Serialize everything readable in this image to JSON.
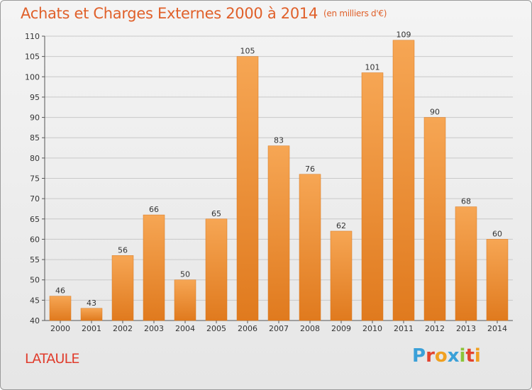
{
  "header": {
    "title": "Achats et Charges Externes 2000 à 2014",
    "unit": "(en milliers d'€)"
  },
  "commune": "LATAULE",
  "brand": {
    "letters": [
      "P",
      "r",
      "o",
      "x",
      "i",
      "t",
      "i"
    ]
  },
  "chart_data": {
    "type": "bar",
    "categories": [
      "2000",
      "2001",
      "2002",
      "2003",
      "2004",
      "2005",
      "2006",
      "2007",
      "2008",
      "2009",
      "2010",
      "2011",
      "2012",
      "2013",
      "2014"
    ],
    "values": [
      46,
      43,
      56,
      66,
      50,
      65,
      105,
      83,
      76,
      62,
      101,
      109,
      90,
      68,
      60
    ],
    "ylim": [
      40,
      110
    ],
    "yticks": [
      40,
      45,
      50,
      55,
      60,
      65,
      70,
      75,
      80,
      85,
      90,
      95,
      100,
      105,
      110
    ],
    "grid": true,
    "bar_color_light": "#f6a654",
    "bar_color_dark": "#e07a1e"
  }
}
